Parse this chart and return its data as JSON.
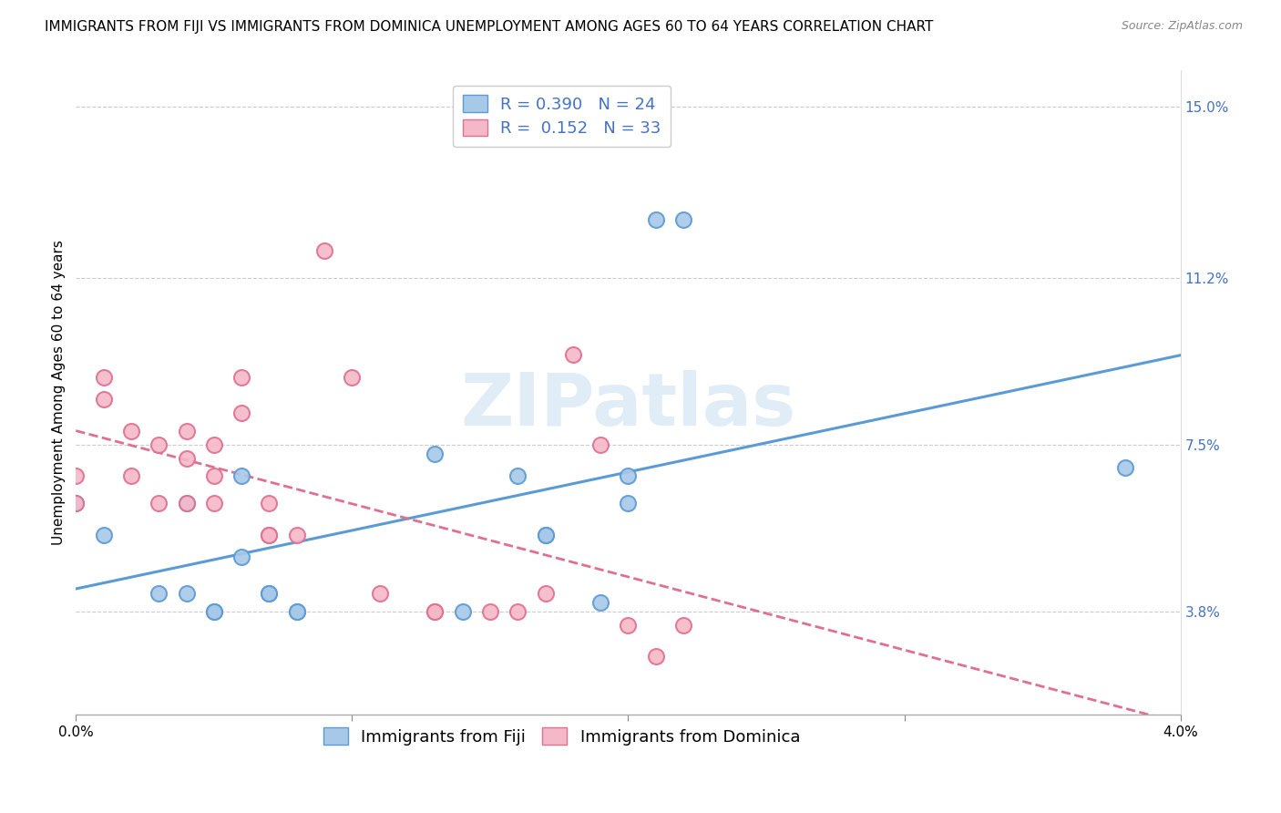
{
  "title": "IMMIGRANTS FROM FIJI VS IMMIGRANTS FROM DOMINICA UNEMPLOYMENT AMONG AGES 60 TO 64 YEARS CORRELATION CHART",
  "source": "Source: ZipAtlas.com",
  "ylabel": "Unemployment Among Ages 60 to 64 years",
  "xlim": [
    0.0,
    0.04
  ],
  "ylim": [
    0.015,
    0.158
  ],
  "xticks": [
    0.0,
    0.01,
    0.02,
    0.03,
    0.04
  ],
  "xtick_labels": [
    "0.0%",
    "",
    "",
    "",
    "4.0%"
  ],
  "right_yticks": [
    0.038,
    0.075,
    0.112,
    0.15
  ],
  "right_ytick_labels": [
    "3.8%",
    "7.5%",
    "11.2%",
    "15.0%"
  ],
  "fiji_color": "#a8c8e8",
  "fiji_edge_color": "#5b9bd5",
  "dominica_color": "#f4b8c8",
  "dominica_edge_color": "#e07090",
  "fiji_R": 0.39,
  "fiji_N": 24,
  "dominica_R": 0.152,
  "dominica_N": 33,
  "watermark": "ZIPatlas",
  "fiji_points_x": [
    0.0,
    0.001,
    0.003,
    0.004,
    0.004,
    0.005,
    0.005,
    0.006,
    0.006,
    0.007,
    0.007,
    0.008,
    0.008,
    0.013,
    0.014,
    0.016,
    0.017,
    0.017,
    0.019,
    0.02,
    0.02,
    0.021,
    0.022,
    0.038
  ],
  "fiji_points_y": [
    0.062,
    0.055,
    0.042,
    0.042,
    0.062,
    0.038,
    0.038,
    0.05,
    0.068,
    0.042,
    0.042,
    0.038,
    0.038,
    0.073,
    0.038,
    0.068,
    0.055,
    0.055,
    0.04,
    0.068,
    0.062,
    0.125,
    0.125,
    0.07
  ],
  "dominica_points_x": [
    0.0,
    0.0,
    0.001,
    0.001,
    0.002,
    0.002,
    0.003,
    0.003,
    0.004,
    0.004,
    0.004,
    0.005,
    0.005,
    0.005,
    0.006,
    0.006,
    0.007,
    0.007,
    0.007,
    0.008,
    0.009,
    0.01,
    0.011,
    0.013,
    0.013,
    0.015,
    0.016,
    0.017,
    0.018,
    0.019,
    0.02,
    0.021,
    0.022
  ],
  "dominica_points_y": [
    0.062,
    0.068,
    0.085,
    0.09,
    0.078,
    0.068,
    0.062,
    0.075,
    0.062,
    0.072,
    0.078,
    0.068,
    0.062,
    0.075,
    0.082,
    0.09,
    0.055,
    0.055,
    0.062,
    0.055,
    0.118,
    0.09,
    0.042,
    0.038,
    0.038,
    0.038,
    0.038,
    0.042,
    0.095,
    0.075,
    0.035,
    0.028,
    0.035
  ],
  "background_color": "#ffffff",
  "grid_color": "#cccccc",
  "title_fontsize": 11,
  "axis_label_fontsize": 11,
  "tick_fontsize": 11,
  "legend_fontsize": 13,
  "tick_color": "#4472c4"
}
